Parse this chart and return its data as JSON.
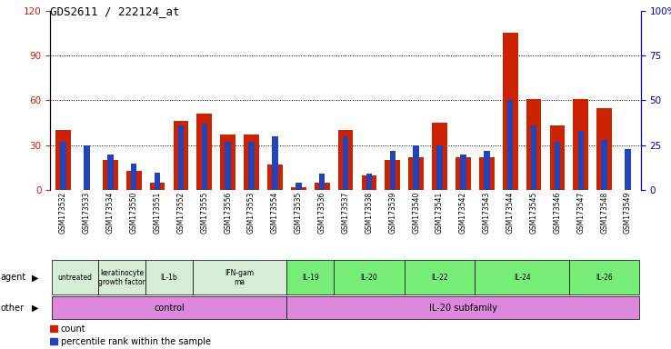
{
  "title": "GDS2611 / 222124_at",
  "samples": [
    "GSM173532",
    "GSM173533",
    "GSM173534",
    "GSM173550",
    "GSM173551",
    "GSM173552",
    "GSM173555",
    "GSM173556",
    "GSM173553",
    "GSM173554",
    "GSM173535",
    "GSM173536",
    "GSM173537",
    "GSM173538",
    "GSM173539",
    "GSM173540",
    "GSM173541",
    "GSM173542",
    "GSM173543",
    "GSM173544",
    "GSM173545",
    "GSM173546",
    "GSM173547",
    "GSM173548",
    "GSM173549"
  ],
  "red_values": [
    40,
    0,
    20,
    13,
    5,
    46,
    51,
    37,
    37,
    17,
    2,
    5,
    40,
    10,
    20,
    22,
    45,
    22,
    22,
    105,
    61,
    43,
    61,
    55,
    0
  ],
  "blue_pct": [
    27,
    25,
    20,
    15,
    10,
    36,
    37,
    27,
    27,
    30,
    4,
    9,
    30,
    9,
    22,
    25,
    25,
    20,
    22,
    50,
    36,
    27,
    33,
    28,
    23
  ],
  "ylim_left": [
    0,
    120
  ],
  "ylim_right": [
    0,
    100
  ],
  "yticks_left": [
    0,
    30,
    60,
    90,
    120
  ],
  "yticks_right": [
    0,
    25,
    50,
    75,
    100
  ],
  "agent_groups": [
    {
      "label": "untreated",
      "start": 0,
      "end": 2,
      "bright": false
    },
    {
      "label": "keratinocyte\ngrowth factor",
      "start": 2,
      "end": 4,
      "bright": false
    },
    {
      "label": "IL-1b",
      "start": 4,
      "end": 6,
      "bright": false
    },
    {
      "label": "IFN-gam\nma",
      "start": 6,
      "end": 10,
      "bright": false
    },
    {
      "label": "IL-19",
      "start": 10,
      "end": 12,
      "bright": true
    },
    {
      "label": "IL-20",
      "start": 12,
      "end": 15,
      "bright": true
    },
    {
      "label": "IL-22",
      "start": 15,
      "end": 18,
      "bright": true
    },
    {
      "label": "IL-24",
      "start": 18,
      "end": 22,
      "bright": true
    },
    {
      "label": "IL-26",
      "start": 22,
      "end": 25,
      "bright": true
    }
  ],
  "other_groups": [
    {
      "label": "control",
      "start": 0,
      "end": 10
    },
    {
      "label": "IL-20 subfamily",
      "start": 10,
      "end": 25
    }
  ],
  "red_color": "#cc2200",
  "blue_color": "#2244bb",
  "agent_light_color": "#d6edd6",
  "agent_bright_color": "#77ee77",
  "other_color": "#dd88dd",
  "left_tick_color": "#cc2200",
  "right_tick_color": "#0000bb"
}
